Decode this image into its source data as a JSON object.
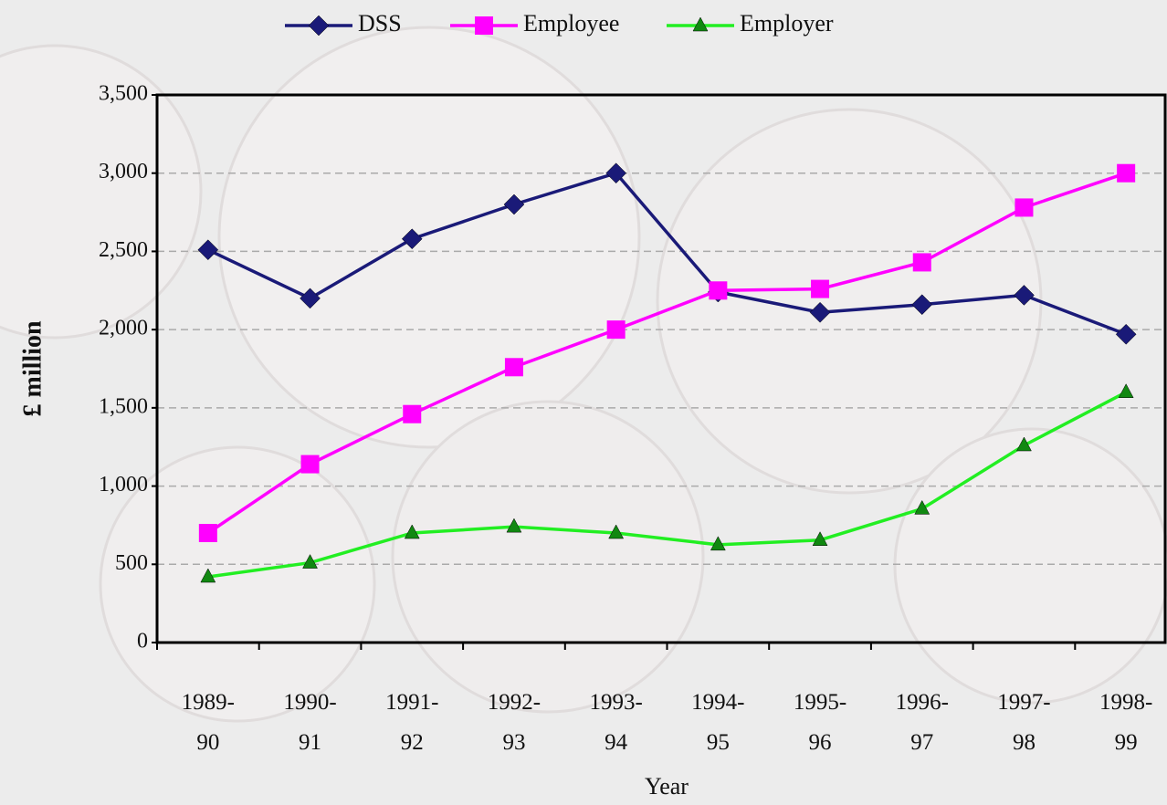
{
  "chart_data": {
    "type": "line",
    "categories": [
      "1989-\n90",
      "1990-\n91",
      "1991-\n92",
      "1992-\n93",
      "1993-\n94",
      "1994-\n95",
      "1995-\n96",
      "1996-\n97",
      "1997-\n98",
      "1998-\n99"
    ],
    "series": [
      {
        "name": "DSS",
        "color": "#1a1a78",
        "marker": "diamond",
        "values": [
          2510,
          2200,
          2580,
          2800,
          3000,
          2240,
          2110,
          2160,
          2220,
          1970
        ]
      },
      {
        "name": "Employee",
        "color": "#ff00ff",
        "marker": "square",
        "values": [
          700,
          1140,
          1460,
          1760,
          2000,
          2250,
          2260,
          2430,
          2780,
          3000
        ]
      },
      {
        "name": "Employer",
        "color": "#22ee22",
        "marker_color": "#118811",
        "marker": "triangle",
        "values": [
          420,
          510,
          700,
          740,
          700,
          625,
          655,
          855,
          1260,
          1600
        ]
      }
    ],
    "x_label": "Year",
    "y_label": "£ million",
    "ylim": [
      0,
      3500
    ],
    "yticks": [
      0,
      500,
      {
        "value": 1000,
        "label": "1,000"
      },
      {
        "value": 1500,
        "label": "1,500"
      },
      {
        "value": 2000,
        "label": "2,000"
      },
      {
        "value": 2500,
        "label": "2,500"
      },
      {
        "value": 3000,
        "label": "3,000"
      },
      {
        "value": 3500,
        "label": "3,500"
      }
    ],
    "grid": true,
    "legend": "top"
  }
}
